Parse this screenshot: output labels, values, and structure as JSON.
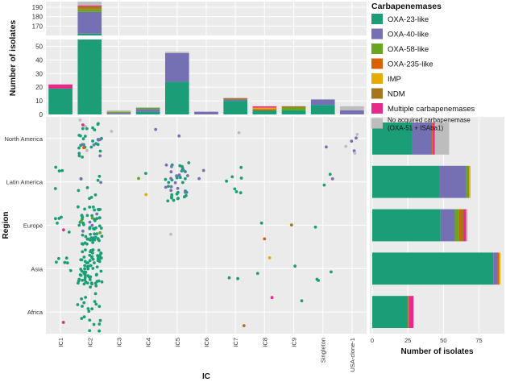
{
  "colors": {
    "OXA-23-like": "#1b9e77",
    "OXA-40-like": "#7570b3",
    "OXA-58-like": "#66a61e",
    "OXA-235-like": "#d95f02",
    "IMP": "#e6ab02",
    "NDM": "#a6761d",
    "Multiple carbapenemases": "#e7298a",
    "No acquired carbapenemase": "#bdbdbd"
  },
  "legend": {
    "title": "Carbapenemases",
    "items": [
      {
        "key": "OXA-23-like",
        "label": "OXA-23-like"
      },
      {
        "key": "OXA-40-like",
        "label": "OXA-40-like"
      },
      {
        "key": "OXA-58-like",
        "label": "OXA-58-like"
      },
      {
        "key": "OXA-235-like",
        "label": "OXA-235-like"
      },
      {
        "key": "IMP",
        "label": "IMP"
      },
      {
        "key": "NDM",
        "label": "NDM"
      },
      {
        "key": "Multiple carbapenemases",
        "label": "Multiple carbapenemases"
      },
      {
        "key": "No acquired carbapenemase",
        "label": "No acquired carbapenemase",
        "label2": "(OXA-51 + ISAba1)"
      }
    ]
  },
  "chart_data": [
    {
      "id": "top",
      "type": "bar",
      "stacked": true,
      "ylabel": "Number of isolates",
      "y_ticks_lower": [
        0,
        10,
        20,
        30,
        40,
        50
      ],
      "y_ticks_upper": [
        170,
        180,
        190
      ],
      "axis_break": [
        60,
        160
      ],
      "categories": [
        "IC1",
        "IC2",
        "IC3",
        "IC4",
        "IC5",
        "IC6",
        "IC7",
        "IC8",
        "IC9",
        "Singleton",
        "USA-clone-1"
      ],
      "series": [
        {
          "name": "OXA-23-like",
          "values": [
            19,
            162,
            0,
            2,
            24,
            0,
            10,
            3,
            3,
            7,
            0
          ]
        },
        {
          "name": "OXA-40-like",
          "values": [
            0,
            23,
            1,
            2,
            21,
            2,
            1,
            0,
            0,
            4,
            3
          ]
        },
        {
          "name": "OXA-58-like",
          "values": [
            0,
            3,
            1,
            1,
            0,
            0,
            0,
            0,
            2,
            0,
            0
          ]
        },
        {
          "name": "OXA-235-like",
          "values": [
            0,
            1,
            0,
            0,
            0,
            0,
            0,
            1,
            0,
            0,
            0
          ]
        },
        {
          "name": "IMP",
          "values": [
            0,
            0,
            0,
            0,
            0,
            0,
            0,
            1,
            0,
            0,
            0
          ]
        },
        {
          "name": "NDM",
          "values": [
            0,
            2,
            0,
            0,
            0,
            0,
            1,
            0,
            1,
            0,
            0
          ]
        },
        {
          "name": "Multiple carbapenemases",
          "values": [
            3,
            1,
            0,
            0,
            0,
            0,
            0,
            1,
            0,
            0,
            0
          ]
        },
        {
          "name": "No acquired carbapenemase",
          "values": [
            0,
            10,
            1,
            0,
            1,
            0,
            0,
            0,
            0,
            0,
            3
          ]
        }
      ]
    },
    {
      "id": "main",
      "type": "scatter",
      "xlabel": "IC",
      "ylabel": "Region",
      "categories": [
        "IC1",
        "IC2",
        "IC3",
        "IC4",
        "IC5",
        "IC6",
        "IC7",
        "IC8",
        "IC9",
        "Singleton",
        "USA-clone-1"
      ],
      "regions": [
        "North America",
        "Latin America",
        "Europe",
        "Asia",
        "Africa"
      ],
      "cells": [
        {
          "region": "North America",
          "ic": "IC2",
          "counts": {
            "OXA-23-like": 24,
            "OXA-40-like": 6,
            "OXA-235-like": 1,
            "Multiple carbapenemases": 1,
            "No acquired carbapenemase": 3
          }
        },
        {
          "region": "North America",
          "ic": "IC3",
          "counts": {
            "No acquired carbapenemase": 1
          }
        },
        {
          "region": "North America",
          "ic": "IC4",
          "counts": {
            "OXA-40-like": 1
          }
        },
        {
          "region": "North America",
          "ic": "IC5",
          "counts": {
            "OXA-40-like": 1
          }
        },
        {
          "region": "North America",
          "ic": "IC7",
          "counts": {
            "No acquired carbapenemase": 1
          }
        },
        {
          "region": "North America",
          "ic": "Singleton",
          "counts": {
            "OXA-40-like": 1
          }
        },
        {
          "region": "North America",
          "ic": "USA-clone-1",
          "counts": {
            "OXA-40-like": 3,
            "No acquired carbapenemase": 3
          }
        },
        {
          "region": "Latin America",
          "ic": "IC1",
          "counts": {
            "OXA-23-like": 4
          }
        },
        {
          "region": "Latin America",
          "ic": "IC2",
          "counts": {
            "OXA-23-like": 8,
            "OXA-40-like": 2
          }
        },
        {
          "region": "Latin America",
          "ic": "IC4",
          "counts": {
            "OXA-23-like": 1,
            "OXA-58-like": 1,
            "IMP": 1
          }
        },
        {
          "region": "Latin America",
          "ic": "IC5",
          "counts": {
            "OXA-23-like": 30,
            "OXA-40-like": 14
          }
        },
        {
          "region": "Latin America",
          "ic": "IC6",
          "counts": {
            "OXA-40-like": 2
          }
        },
        {
          "region": "Latin America",
          "ic": "IC7",
          "counts": {
            "OXA-23-like": 7
          }
        },
        {
          "region": "Latin America",
          "ic": "Singleton",
          "counts": {
            "OXA-23-like": 2,
            "OXA-40-like": 1
          }
        },
        {
          "region": "Europe",
          "ic": "IC1",
          "counts": {
            "OXA-23-like": 5,
            "Multiple carbapenemases": 1
          }
        },
        {
          "region": "Europe",
          "ic": "IC2",
          "counts": {
            "OXA-23-like": 52,
            "OXA-40-like": 4,
            "OXA-58-like": 3
          }
        },
        {
          "region": "Europe",
          "ic": "IC5",
          "counts": {
            "No acquired carbapenemase": 1
          }
        },
        {
          "region": "Europe",
          "ic": "IC8",
          "counts": {
            "OXA-23-like": 1,
            "OXA-235-like": 1
          }
        },
        {
          "region": "Europe",
          "ic": "IC9",
          "counts": {
            "NDM": 1
          }
        },
        {
          "region": "Europe",
          "ic": "Singleton",
          "counts": {
            "OXA-23-like": 1
          }
        },
        {
          "region": "Asia",
          "ic": "IC1",
          "counts": {
            "OXA-23-like": 6
          }
        },
        {
          "region": "Asia",
          "ic": "IC2",
          "counts": {
            "OXA-23-like": 72
          }
        },
        {
          "region": "Asia",
          "ic": "IC7",
          "counts": {
            "OXA-23-like": 2
          }
        },
        {
          "region": "Asia",
          "ic": "IC8",
          "counts": {
            "OXA-23-like": 1,
            "IMP": 1
          }
        },
        {
          "region": "Asia",
          "ic": "IC9",
          "counts": {
            "OXA-23-like": 1
          }
        },
        {
          "region": "Asia",
          "ic": "Singleton",
          "counts": {
            "OXA-23-like": 3
          }
        },
        {
          "region": "Africa",
          "ic": "IC1",
          "counts": {
            "Multiple carbapenemases": 1
          }
        },
        {
          "region": "Africa",
          "ic": "IC2",
          "counts": {
            "OXA-23-like": 20
          }
        },
        {
          "region": "Africa",
          "ic": "IC7",
          "counts": {
            "NDM": 1
          }
        },
        {
          "region": "Africa",
          "ic": "IC8",
          "counts": {
            "Multiple carbapenemases": 1
          }
        },
        {
          "region": "Africa",
          "ic": "IC9",
          "counts": {
            "OXA-23-like": 1
          }
        }
      ]
    },
    {
      "id": "right",
      "type": "bar",
      "orientation": "horizontal",
      "stacked": true,
      "xlabel": "Number of isolates",
      "x_ticks": [
        0,
        25,
        50,
        75
      ],
      "xlim": [
        0,
        90
      ],
      "categories": [
        "North America",
        "Latin America",
        "Europe",
        "Asia",
        "Africa"
      ],
      "series": [
        {
          "name": "OXA-23-like",
          "values": [
            28,
            47,
            48,
            85,
            25
          ]
        },
        {
          "name": "OXA-40-like",
          "values": [
            14,
            19,
            10,
            3,
            0
          ]
        },
        {
          "name": "OXA-58-like",
          "values": [
            0,
            2,
            3,
            0,
            0
          ]
        },
        {
          "name": "OXA-235-like",
          "values": [
            1,
            0,
            1,
            1,
            0
          ]
        },
        {
          "name": "IMP",
          "values": [
            0,
            1,
            0,
            1,
            0
          ]
        },
        {
          "name": "NDM",
          "values": [
            0,
            0,
            2,
            0,
            1
          ]
        },
        {
          "name": "Multiple carbapenemases",
          "values": [
            1,
            0,
            2,
            0,
            3
          ]
        },
        {
          "name": "No acquired carbapenemase",
          "values": [
            10,
            0,
            1,
            0,
            0
          ]
        }
      ]
    }
  ]
}
